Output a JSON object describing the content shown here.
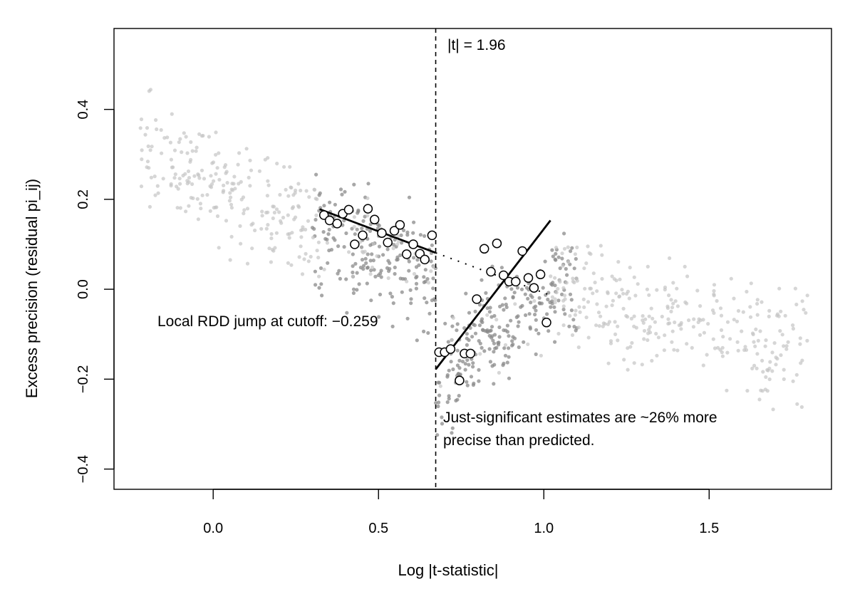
{
  "chart_data": {
    "type": "scatter",
    "title": "",
    "xlabel": "Log |t-statistic|",
    "ylabel": "Excess precision (residual pi_ij)",
    "xlim": [
      -0.3,
      1.87
    ],
    "ylim": [
      -0.445,
      0.58
    ],
    "x_ticks": [
      {
        "value": 0.0,
        "label": "0.0"
      },
      {
        "value": 0.5,
        "label": "0.5"
      },
      {
        "value": 1.0,
        "label": "1.0"
      },
      {
        "value": 1.5,
        "label": "1.5"
      }
    ],
    "y_ticks": [
      {
        "value": -0.4,
        "label": "−0.4"
      },
      {
        "value": -0.2,
        "label": "−0.2"
      },
      {
        "value": 0.0,
        "label": "0.0"
      },
      {
        "value": 0.2,
        "label": "0.2"
      },
      {
        "value": 0.4,
        "label": "0.4"
      }
    ],
    "grid": false,
    "cutoff": {
      "x": 0.673,
      "label": "|t| = 1.96"
    },
    "binned_means": [
      {
        "x": 0.335,
        "y": 0.165
      },
      {
        "x": 0.352,
        "y": 0.153
      },
      {
        "x": 0.375,
        "y": 0.146
      },
      {
        "x": 0.392,
        "y": 0.168
      },
      {
        "x": 0.41,
        "y": 0.177
      },
      {
        "x": 0.428,
        "y": 0.1
      },
      {
        "x": 0.452,
        "y": 0.12
      },
      {
        "x": 0.468,
        "y": 0.179
      },
      {
        "x": 0.488,
        "y": 0.155
      },
      {
        "x": 0.51,
        "y": 0.125
      },
      {
        "x": 0.528,
        "y": 0.104
      },
      {
        "x": 0.548,
        "y": 0.13
      },
      {
        "x": 0.565,
        "y": 0.143
      },
      {
        "x": 0.585,
        "y": 0.078
      },
      {
        "x": 0.605,
        "y": 0.1
      },
      {
        "x": 0.625,
        "y": 0.079
      },
      {
        "x": 0.64,
        "y": 0.066
      },
      {
        "x": 0.662,
        "y": 0.12
      },
      {
        "x": 0.683,
        "y": -0.14
      },
      {
        "x": 0.7,
        "y": -0.14
      },
      {
        "x": 0.718,
        "y": -0.133
      },
      {
        "x": 0.745,
        "y": -0.203
      },
      {
        "x": 0.76,
        "y": -0.143
      },
      {
        "x": 0.778,
        "y": -0.143
      },
      {
        "x": 0.797,
        "y": -0.022
      },
      {
        "x": 0.82,
        "y": 0.09
      },
      {
        "x": 0.84,
        "y": 0.039
      },
      {
        "x": 0.858,
        "y": 0.102
      },
      {
        "x": 0.878,
        "y": 0.031
      },
      {
        "x": 0.895,
        "y": 0.017
      },
      {
        "x": 0.915,
        "y": 0.017
      },
      {
        "x": 0.935,
        "y": 0.085
      },
      {
        "x": 0.953,
        "y": 0.025
      },
      {
        "x": 0.97,
        "y": 0.003
      },
      {
        "x": 0.99,
        "y": 0.033
      },
      {
        "x": 1.008,
        "y": -0.074
      }
    ],
    "fit_left": {
      "x": [
        0.322,
        0.673
      ],
      "y": [
        0.178,
        0.081
      ]
    },
    "fit_right": {
      "x": [
        0.673,
        1.02
      ],
      "y": [
        -0.178,
        0.153
      ]
    },
    "fit_left_extension": {
      "x": [
        0.673,
        1.015
      ],
      "y": [
        0.081,
        -0.012
      ]
    },
    "scatter_groups": [
      {
        "name": "near-cutoff",
        "x_range": [
          0.3,
          1.1
        ],
        "color": "#8a8a8a",
        "opacity": 0.75
      },
      {
        "name": "far-from-cutoff",
        "x_range": [
          -0.22,
          1.8
        ],
        "color": "#c4c4c4",
        "opacity": 0.7
      }
    ],
    "annotations": {
      "cutoff_label": "|t| = 1.96",
      "rdd_jump": "Local RDD jump at cutoff: −0.259",
      "summary_line1": "Just-significant estimates are ~26% more",
      "summary_line2": "precise than predicted."
    }
  }
}
